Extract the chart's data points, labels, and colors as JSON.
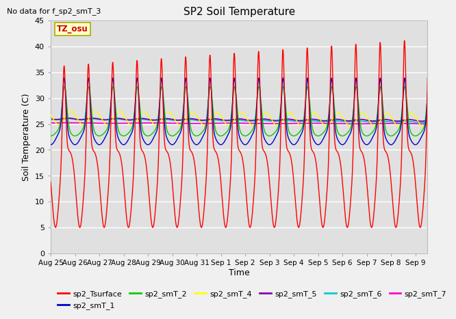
{
  "title": "SP2 Soil Temperature",
  "no_data_text": "No data for f_sp2_smT_3",
  "xlabel": "Time",
  "ylabel": "Soil Temperature (C)",
  "tz_label": "TZ_osu",
  "ylim": [
    0,
    45
  ],
  "yticks": [
    0,
    5,
    10,
    15,
    20,
    25,
    30,
    35,
    40,
    45
  ],
  "xtick_labels": [
    "Aug 25",
    "Aug 26",
    "Aug 27",
    "Aug 28",
    "Aug 29",
    "Aug 30",
    "Aug 31",
    "Sep 1",
    "Sep 2",
    "Sep 3",
    "Sep 4",
    "Sep 5",
    "Sep 6",
    "Sep 7",
    "Sep 8",
    "Sep 9"
  ],
  "plot_bg": "#e0e0e0",
  "fig_bg": "#f0f0f0",
  "grid_color": "white",
  "legend_entries": [
    {
      "label": "sp2_Tsurface",
      "color": "#ff0000"
    },
    {
      "label": "sp2_smT_1",
      "color": "#0000cc"
    },
    {
      "label": "sp2_smT_2",
      "color": "#00cc00"
    },
    {
      "label": "sp2_smT_4",
      "color": "#ffff00"
    },
    {
      "label": "sp2_smT_5",
      "color": "#8800aa"
    },
    {
      "label": "sp2_smT_6",
      "color": "#00cccc"
    },
    {
      "label": "sp2_smT_7",
      "color": "#ff00cc"
    }
  ]
}
